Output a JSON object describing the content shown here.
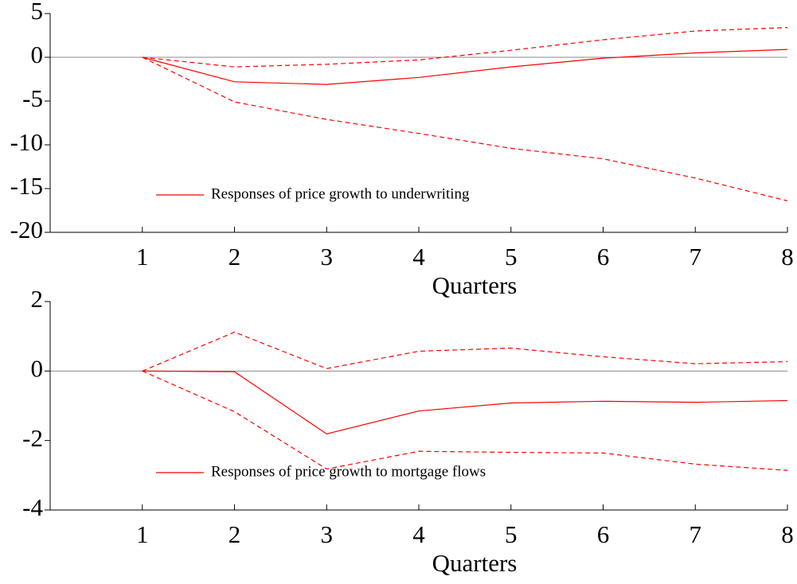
{
  "chart_data": [
    {
      "type": "line",
      "xlabel": "Quarters",
      "xlim": [
        0,
        8
      ],
      "xticks": [
        1,
        2,
        3,
        4,
        5,
        6,
        7,
        8
      ],
      "ylim": [
        -20,
        5
      ],
      "yticks": [
        5,
        0,
        -5,
        -10,
        -15,
        -20
      ],
      "hline": 0,
      "legend": "lower left",
      "x": [
        1,
        2,
        3,
        4,
        5,
        6,
        7,
        8
      ],
      "series": [
        {
          "name": "Responses of price growth to underwriting",
          "color": "#ff0000",
          "dashed": false,
          "values": [
            0,
            -2.8,
            -3.1,
            -2.3,
            -1.1,
            -0.1,
            0.5,
            0.9
          ]
        },
        {
          "color": "#ff0000",
          "dashed": true,
          "values": [
            0,
            -1.1,
            -0.8,
            -0.3,
            0.8,
            2.0,
            3.0,
            3.4
          ]
        },
        {
          "color": "#ff0000",
          "dashed": true,
          "values": [
            0,
            -5.1,
            -7.1,
            -8.7,
            -10.4,
            -11.6,
            -13.8,
            -16.4
          ]
        }
      ]
    },
    {
      "type": "line",
      "xlabel": "Quarters",
      "xlim": [
        0,
        8
      ],
      "xticks": [
        1,
        2,
        3,
        4,
        5,
        6,
        7,
        8
      ],
      "ylim": [
        -4,
        2
      ],
      "yticks": [
        2,
        0,
        -2,
        -4
      ],
      "hline": 0,
      "legend": "lower left",
      "x": [
        1,
        2,
        3,
        4,
        5,
        6,
        7,
        8
      ],
      "series": [
        {
          "name": "Responses of price growth to mortgage flows",
          "color": "#ff0000",
          "dashed": false,
          "values": [
            0,
            -0.02,
            -1.81,
            -1.15,
            -0.92,
            -0.87,
            -0.9,
            -0.85
          ]
        },
        {
          "color": "#ff0000",
          "dashed": true,
          "values": [
            0,
            1.12,
            0.07,
            0.57,
            0.66,
            0.41,
            0.21,
            0.27
          ]
        },
        {
          "color": "#ff0000",
          "dashed": true,
          "values": [
            0,
            -1.17,
            -2.82,
            -2.31,
            -2.34,
            -2.36,
            -2.68,
            -2.86
          ]
        }
      ]
    }
  ]
}
